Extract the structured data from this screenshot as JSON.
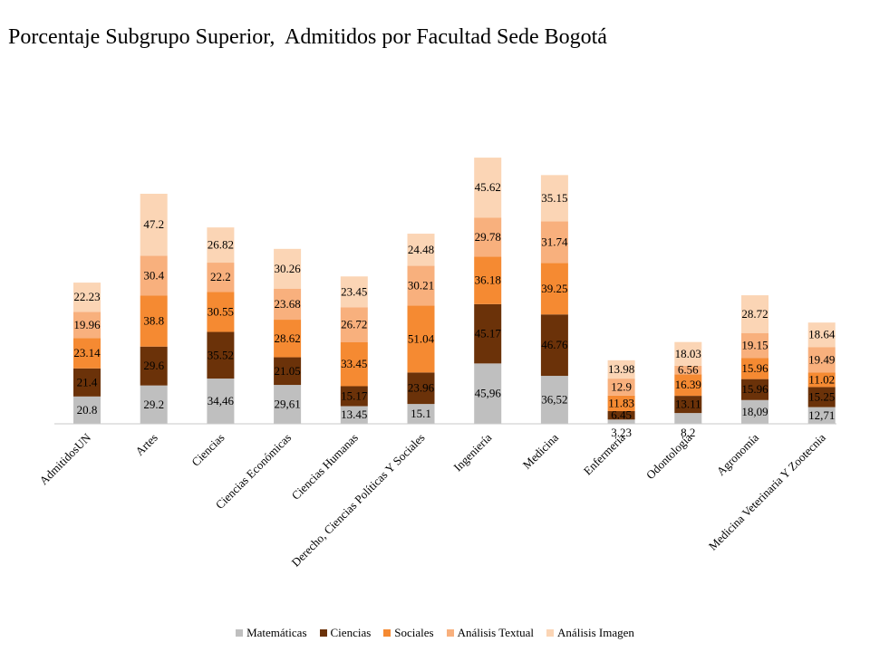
{
  "chart_data": {
    "type": "bar",
    "stacked": true,
    "title": "Porcentaje Subgrupo Superior,  Admitidos por Facultad Sede Bogotá",
    "xlabel": "",
    "ylabel": "",
    "grid": false,
    "legend_position": "bottom",
    "categories": [
      "AdmitidosUN",
      "Artes",
      "Ciencias",
      "Ciencias Económicas",
      "Ciencias Humanas",
      "Derecho, Ciencias Políticas Y Sociales",
      "Ingeniería",
      "Medicina",
      "Enfermería",
      "Odontología",
      "Agronomía",
      "Medicina Veterinaria Y Zootecnia"
    ],
    "series": [
      {
        "name": "Matemáticas",
        "color": "#bfbfbf",
        "values": [
          20.8,
          29.2,
          34.46,
          29.61,
          13.45,
          15.1,
          45.96,
          36.52,
          3.23,
          8.2,
          18.09,
          12.71
        ],
        "labels": [
          "20.8",
          "29.2",
          "34,46",
          "29,61",
          "13.45",
          "15.1",
          "45,96",
          "36,52",
          "3.23",
          "8.2",
          "18,09",
          "12,71"
        ]
      },
      {
        "name": "Ciencias",
        "color": "#6b3209",
        "values": [
          21.4,
          29.6,
          35.52,
          21.05,
          15.17,
          23.96,
          45.17,
          46.76,
          6.45,
          13.11,
          15.96,
          15.25
        ],
        "labels": [
          "21.4",
          "29.6",
          "35.52",
          "21.05",
          "15.17",
          "23.96",
          "45.17",
          "46.76",
          "6.45",
          "13.11",
          "15.96",
          "15.25"
        ]
      },
      {
        "name": "Sociales",
        "color": "#f58a32",
        "values": [
          23.14,
          38.8,
          30.55,
          28.62,
          33.45,
          51.04,
          36.18,
          39.25,
          11.83,
          16.39,
          15.96,
          11.02
        ],
        "labels": [
          "23.14",
          "38.8",
          "30.55",
          "28.62",
          "33.45",
          "51.04",
          "36.18",
          "39.25",
          "11.83",
          "16.39",
          "15.96",
          "11.02"
        ]
      },
      {
        "name": "Análisis Textual",
        "color": "#f8b07d",
        "values": [
          19.96,
          30.4,
          22.2,
          23.68,
          26.72,
          30.21,
          29.78,
          31.74,
          12.9,
          6.56,
          19.15,
          19.49
        ],
        "labels": [
          "19.96",
          "30.4",
          "22.2",
          "23.68",
          "26.72",
          "30.21",
          "29.78",
          "31.74",
          "12.9",
          "6.56",
          "19.15",
          "19.49"
        ]
      },
      {
        "name": "Análisis Imagen",
        "color": "#fbd5b5",
        "values": [
          22.23,
          47.2,
          26.82,
          30.26,
          23.45,
          24.48,
          45.62,
          35.15,
          13.98,
          18.03,
          28.72,
          18.64
        ],
        "labels": [
          "22.23",
          "47.2",
          "26.82",
          "30.26",
          "23.45",
          "24.48",
          "45.62",
          "35.15",
          "13.98",
          "18.03",
          "28.72",
          "18.64"
        ]
      }
    ]
  }
}
